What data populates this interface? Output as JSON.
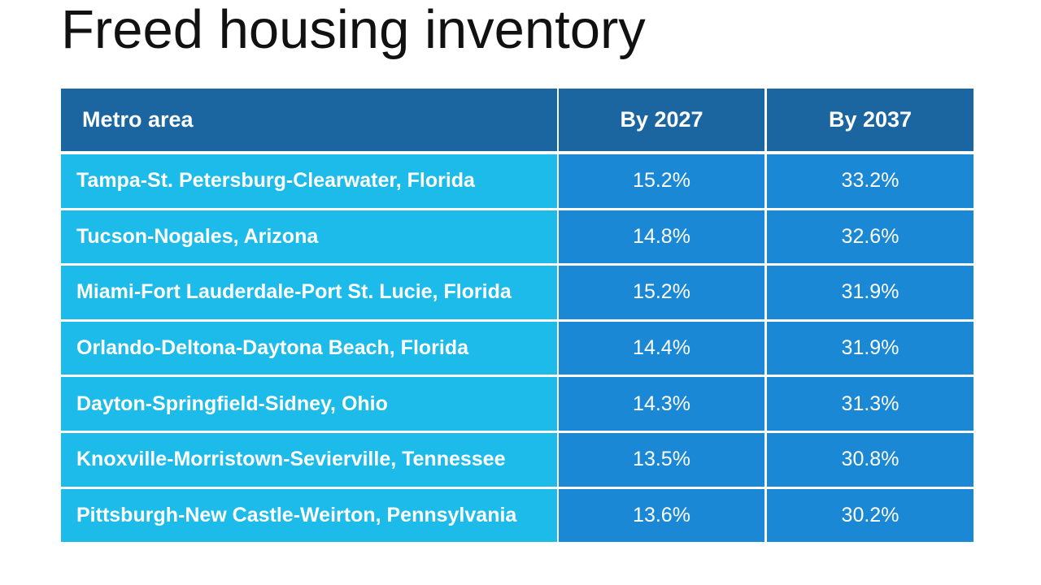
{
  "header": {
    "title": "Freed housing inventory"
  },
  "table": {
    "columns": [
      "Metro area",
      "By 2027",
      "By 2037"
    ],
    "rows": [
      [
        "Tampa-St. Petersburg-Clearwater, Florida",
        "15.2%",
        "33.2%"
      ],
      [
        "Tucson-Nogales, Arizona",
        "14.8%",
        "32.6%"
      ],
      [
        "Miami-Fort Lauderdale-Port St. Lucie, Florida",
        "15.2%",
        "31.9%"
      ],
      [
        "Orlando-Deltona-Daytona Beach, Florida",
        "14.4%",
        "31.9%"
      ],
      [
        "Dayton-Springfield-Sidney, Ohio",
        "14.3%",
        "31.3%"
      ],
      [
        "Knoxville-Morristown-Sevierville, Tennessee",
        "13.5%",
        "30.8%"
      ],
      [
        "Pittsburgh-New Castle-Weirton, Pennsylvania",
        "13.6%",
        "30.2%"
      ]
    ]
  }
}
